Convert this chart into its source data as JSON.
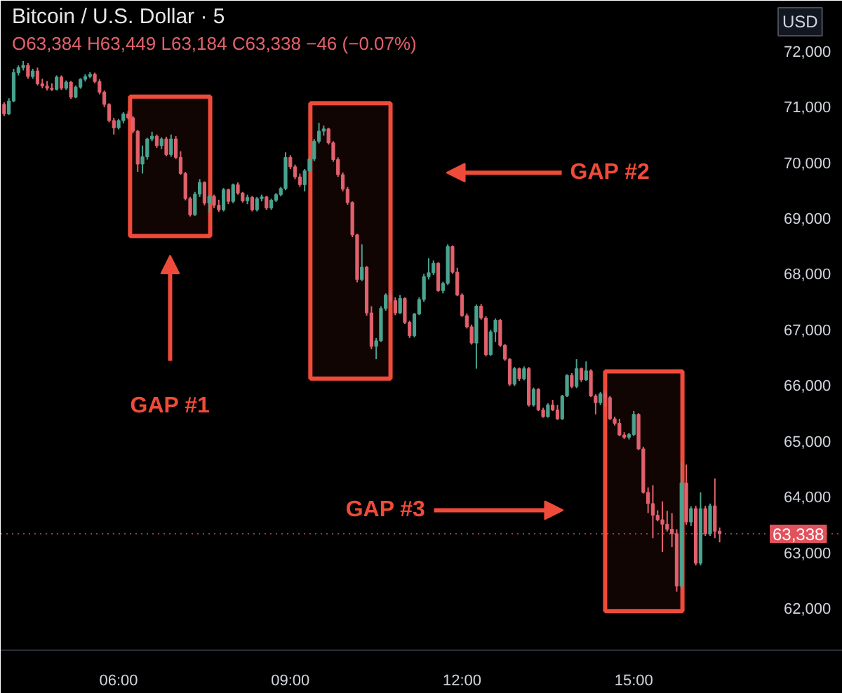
{
  "chart_data": {
    "type": "candlestick",
    "title": "Bitcoin / U.S. Dollar · 5",
    "subtitle": "O63,384 H63,449 L63,184 C63,338 −46 (−0.07%)",
    "ylabel": "USD",
    "x": [
      4,
      4.0833,
      4.1667,
      4.25,
      4.3333,
      4.4167,
      4.5,
      4.5833,
      4.6667,
      4.75,
      4.8333,
      4.9167,
      5,
      5.0833,
      5.1667,
      5.25,
      5.3333,
      5.4167,
      5.5,
      5.5833,
      5.6667,
      5.75,
      5.8333,
      5.9167,
      6,
      6.0833,
      6.1667,
      6.25,
      6.3333,
      6.4167,
      6.5,
      6.5833,
      6.6667,
      6.75,
      6.8333,
      6.9167,
      7,
      7.0833,
      7.1667,
      7.25,
      7.3333,
      7.4167,
      7.5,
      7.5833,
      7.6667,
      7.75,
      7.8333,
      7.9167,
      8,
      8.0833,
      8.1667,
      8.25,
      8.3333,
      8.4167,
      8.5,
      8.5833,
      8.6667,
      8.75,
      8.8333,
      8.9167,
      9,
      9.0833,
      9.1667,
      9.25,
      9.3333,
      9.4167,
      9.5,
      9.5833,
      9.6667,
      9.75,
      9.8333,
      9.9167,
      10,
      10.0833,
      10.1667,
      10.25,
      10.3333,
      10.4167,
      10.5,
      10.5833,
      10.6667,
      10.75,
      10.8333,
      10.9167,
      11,
      11.0833,
      11.1667,
      11.25,
      11.3333,
      11.4167,
      11.5,
      11.5833,
      11.6667,
      11.75,
      11.8333,
      11.9167,
      12,
      12.0833,
      12.1667,
      12.25,
      12.3333,
      12.4167,
      12.5,
      12.5833,
      12.6667,
      12.75,
      12.8333,
      12.9167,
      13,
      13.0833,
      13.1667,
      13.25,
      13.3333,
      13.4167,
      13.5,
      13.5833,
      13.6667,
      13.75,
      13.8333,
      13.9167,
      14,
      14.0833,
      14.1667,
      14.25,
      14.3333,
      14.4167,
      14.5,
      14.5833,
      14.6667,
      14.75,
      14.8333,
      14.9167,
      15,
      15.0833,
      15.1667,
      15.25,
      15.3333,
      15.4167,
      15.5,
      15.5833,
      15.6667,
      15.75,
      15.8333,
      15.9167,
      16,
      16.0833,
      16.1667,
      16.25,
      16.3333,
      16.4167,
      16.5
    ],
    "ohlc": [
      [
        71040,
        71080,
        70830,
        70870
      ],
      [
        70870,
        71150,
        70850,
        71100
      ],
      [
        71100,
        71680,
        71080,
        71610
      ],
      [
        71610,
        71740,
        71560,
        71700
      ],
      [
        71700,
        71820,
        71650,
        71740
      ],
      [
        71740,
        71780,
        71500,
        71540
      ],
      [
        71540,
        71680,
        71500,
        71640
      ],
      [
        71640,
        71700,
        71380,
        71410
      ],
      [
        71410,
        71500,
        71330,
        71370
      ],
      [
        71370,
        71460,
        71290,
        71330
      ],
      [
        71330,
        71420,
        71280,
        71310
      ],
      [
        71310,
        71560,
        71290,
        71530
      ],
      [
        71530,
        71560,
        71300,
        71330
      ],
      [
        71330,
        71470,
        71300,
        71440
      ],
      [
        71440,
        71460,
        71140,
        71170
      ],
      [
        71170,
        71380,
        71150,
        71350
      ],
      [
        71350,
        71510,
        71320,
        71490
      ],
      [
        71490,
        71580,
        71450,
        71540
      ],
      [
        71540,
        71620,
        71510,
        71580
      ],
      [
        71580,
        71610,
        71420,
        71450
      ],
      [
        71450,
        71490,
        71220,
        71260
      ],
      [
        71260,
        71290,
        70990,
        71040
      ],
      [
        71040,
        71060,
        70720,
        70750
      ],
      [
        70750,
        70800,
        70500,
        70620
      ],
      [
        70620,
        70780,
        70590,
        70750
      ],
      [
        70750,
        70900,
        70700,
        70870
      ],
      [
        70870,
        70920,
        70770,
        70800
      ],
      [
        70800,
        70830,
        70520,
        70560
      ],
      [
        70560,
        70580,
        69830,
        69970
      ],
      [
        69970,
        70300,
        69800,
        70100
      ],
      [
        70100,
        70440,
        70050,
        70420
      ],
      [
        70420,
        70550,
        70380,
        70470
      ],
      [
        70470,
        70500,
        70260,
        70300
      ],
      [
        70300,
        70450,
        70240,
        70420
      ],
      [
        70420,
        70460,
        70110,
        70140
      ],
      [
        70140,
        70500,
        70100,
        70420
      ],
      [
        70420,
        70470,
        70060,
        70090
      ],
      [
        70090,
        70200,
        69780,
        69800
      ],
      [
        69800,
        69830,
        69320,
        69350
      ],
      [
        69350,
        69380,
        69030,
        69060
      ],
      [
        69060,
        69470,
        69040,
        69430
      ],
      [
        69430,
        69700,
        69380,
        69640
      ],
      [
        69640,
        69660,
        69230,
        69270
      ],
      [
        69270,
        69420,
        69100,
        69390
      ],
      [
        69390,
        69420,
        69180,
        69230
      ],
      [
        69230,
        69330,
        69110,
        69150
      ],
      [
        69150,
        69540,
        69120,
        69510
      ],
      [
        69510,
        69530,
        69250,
        69300
      ],
      [
        69300,
        69620,
        69270,
        69600
      ],
      [
        69600,
        69640,
        69420,
        69450
      ],
      [
        69450,
        69470,
        69280,
        69310
      ],
      [
        69310,
        69420,
        69250,
        69370
      ],
      [
        69370,
        69400,
        69120,
        69150
      ],
      [
        69150,
        69380,
        69120,
        69350
      ],
      [
        69350,
        69420,
        69300,
        69380
      ],
      [
        69380,
        69400,
        69150,
        69180
      ],
      [
        69180,
        69350,
        69150,
        69320
      ],
      [
        69320,
        69450,
        69290,
        69420
      ],
      [
        69420,
        69560,
        69390,
        69530
      ],
      [
        69530,
        70180,
        69500,
        70090
      ],
      [
        70090,
        70130,
        69880,
        69920
      ],
      [
        69920,
        69960,
        69700,
        69740
      ],
      [
        69740,
        69800,
        69560,
        69600
      ],
      [
        69600,
        69880,
        69480,
        69850
      ],
      [
        69850,
        70100,
        69820,
        70060
      ],
      [
        70060,
        70420,
        70020,
        70380
      ],
      [
        70380,
        70710,
        70340,
        70560
      ],
      [
        70560,
        70660,
        70480,
        70600
      ],
      [
        70600,
        70620,
        70320,
        70350
      ],
      [
        70350,
        70380,
        70010,
        70050
      ],
      [
        70050,
        70090,
        69740,
        69780
      ],
      [
        69780,
        69820,
        69480,
        69520
      ],
      [
        69520,
        69560,
        69240,
        69280
      ],
      [
        69280,
        69300,
        68660,
        68700
      ],
      [
        68700,
        68720,
        67850,
        67900
      ],
      [
        67900,
        68530,
        67870,
        68120
      ],
      [
        68120,
        68140,
        67250,
        67300
      ],
      [
        67300,
        67420,
        66650,
        66700
      ],
      [
        66700,
        66850,
        66470,
        66800
      ],
      [
        66800,
        67420,
        66780,
        67380
      ],
      [
        67380,
        67650,
        67340,
        67620
      ],
      [
        67620,
        67700,
        67480,
        67520
      ],
      [
        67520,
        67580,
        67260,
        67300
      ],
      [
        67300,
        67620,
        67280,
        67560
      ],
      [
        67560,
        67580,
        67100,
        67130
      ],
      [
        67130,
        67160,
        66850,
        66890
      ],
      [
        66890,
        67300,
        66860,
        67280
      ],
      [
        67280,
        67580,
        67260,
        67540
      ],
      [
        67540,
        68000,
        67500,
        67950
      ],
      [
        67950,
        68280,
        67900,
        68020
      ],
      [
        68020,
        68240,
        67980,
        68190
      ],
      [
        68190,
        68210,
        67680,
        67700
      ],
      [
        67700,
        67860,
        67650,
        67830
      ],
      [
        67830,
        68530,
        67800,
        68490
      ],
      [
        68490,
        68510,
        68000,
        68030
      ],
      [
        68030,
        68110,
        67600,
        67620
      ],
      [
        67620,
        67650,
        67230,
        67250
      ],
      [
        67250,
        67290,
        67020,
        67050
      ],
      [
        67050,
        67090,
        66730,
        66760
      ],
      [
        66760,
        67450,
        66300,
        67420
      ],
      [
        67420,
        67460,
        67180,
        67210
      ],
      [
        67210,
        67240,
        66520,
        66550
      ],
      [
        66550,
        67000,
        66530,
        66960
      ],
      [
        66960,
        67200,
        66780,
        67170
      ],
      [
        67170,
        67190,
        66690,
        66720
      ],
      [
        66720,
        66740,
        66440,
        66470
      ],
      [
        66470,
        66490,
        65990,
        66020
      ],
      [
        66020,
        66330,
        65990,
        66300
      ],
      [
        66300,
        66320,
        66080,
        66120
      ],
      [
        66120,
        66340,
        66090,
        66300
      ],
      [
        66300,
        66330,
        65620,
        65650
      ],
      [
        65650,
        65960,
        65620,
        65930
      ],
      [
        65930,
        65950,
        65540,
        65560
      ],
      [
        65560,
        65600,
        65420,
        65440
      ],
      [
        65440,
        65680,
        65420,
        65650
      ],
      [
        65650,
        65740,
        65540,
        65560
      ],
      [
        65560,
        65650,
        65380,
        65400
      ],
      [
        65400,
        65830,
        65380,
        65810
      ],
      [
        65810,
        66200,
        65790,
        66180
      ],
      [
        66180,
        66220,
        65950,
        65980
      ],
      [
        65980,
        66470,
        65950,
        66300
      ],
      [
        66300,
        66320,
        66060,
        66100
      ],
      [
        66100,
        66430,
        66080,
        66260
      ],
      [
        66260,
        66290,
        65790,
        65810
      ],
      [
        65810,
        65840,
        65480,
        65690
      ],
      [
        65690,
        65880,
        65650,
        65850
      ],
      [
        65850,
        65900,
        65620,
        65780
      ],
      [
        65780,
        65810,
        65380,
        65400
      ],
      [
        65400,
        65440,
        65280,
        65320
      ],
      [
        65320,
        65400,
        65090,
        65110
      ],
      [
        65110,
        65160,
        65040,
        65070
      ],
      [
        65070,
        65150,
        65030,
        65120
      ],
      [
        65120,
        65540,
        65090,
        65480
      ],
      [
        65480,
        65500,
        64840,
        64860
      ],
      [
        64860,
        64900,
        64060,
        64080
      ],
      [
        64080,
        64170,
        63710,
        63880
      ],
      [
        63880,
        64210,
        63260,
        63670
      ],
      [
        63670,
        63760,
        63560,
        63590
      ],
      [
        63590,
        63920,
        63010,
        63510
      ],
      [
        63510,
        63750,
        63380,
        63420
      ],
      [
        63420,
        63710,
        63100,
        63340
      ],
      [
        63340,
        63420,
        62300,
        62400
      ],
      [
        62400,
        64620,
        62350,
        64250
      ],
      [
        64250,
        64580,
        63500,
        63550
      ],
      [
        63550,
        63830,
        63480,
        63790
      ],
      [
        63790,
        63840,
        62770,
        62810
      ],
      [
        62810,
        64080,
        62770,
        63790
      ],
      [
        63790,
        63840,
        63300,
        63340
      ],
      [
        63340,
        63880,
        63300,
        63840
      ],
      [
        63840,
        64330,
        63260,
        63384
      ],
      [
        63384,
        63449,
        63184,
        63338
      ]
    ],
    "colors": [
      "#e1616c",
      "#4aa38f",
      "#4aa38f",
      "#4aa38f",
      "#4aa38f",
      "#e1616c",
      "#4aa38f",
      "#e1616c",
      "#e1616c",
      "#e1616c",
      "#e1616c",
      "#4aa38f",
      "#e1616c",
      "#4aa38f",
      "#e1616c",
      "#4aa38f",
      "#4aa38f",
      "#4aa38f",
      "#4aa38f",
      "#e1616c",
      "#e1616c",
      "#e1616c",
      "#e1616c",
      "#e1616c",
      "#4aa38f",
      "#4aa38f",
      "#e1616c",
      "#e1616c",
      "#e1616c",
      "#4aa38f",
      "#4aa38f",
      "#4aa38f",
      "#e1616c",
      "#4aa38f",
      "#e1616c",
      "#4aa38f",
      "#e1616c",
      "#e1616c",
      "#e1616c",
      "#e1616c",
      "#4aa38f",
      "#4aa38f",
      "#e1616c",
      "#4aa38f",
      "#e1616c",
      "#e1616c",
      "#4aa38f",
      "#e1616c",
      "#4aa38f",
      "#e1616c",
      "#e1616c",
      "#4aa38f",
      "#e1616c",
      "#4aa38f",
      "#4aa38f",
      "#e1616c",
      "#4aa38f",
      "#4aa38f",
      "#4aa38f",
      "#4aa38f",
      "#e1616c",
      "#e1616c",
      "#e1616c",
      "#4aa38f",
      "#4aa38f",
      "#4aa38f",
      "#4aa38f",
      "#4aa38f",
      "#e1616c",
      "#e1616c",
      "#e1616c",
      "#e1616c",
      "#e1616c",
      "#e1616c",
      "#e1616c",
      "#4aa38f",
      "#e1616c",
      "#e1616c",
      "#4aa38f",
      "#4aa38f",
      "#4aa38f",
      "#e1616c",
      "#e1616c",
      "#4aa38f",
      "#e1616c",
      "#e1616c",
      "#4aa38f",
      "#4aa38f",
      "#4aa38f",
      "#4aa38f",
      "#4aa38f",
      "#e1616c",
      "#4aa38f",
      "#4aa38f",
      "#e1616c",
      "#e1616c",
      "#e1616c",
      "#e1616c",
      "#e1616c",
      "#4aa38f",
      "#e1616c",
      "#e1616c",
      "#4aa38f",
      "#4aa38f",
      "#e1616c",
      "#e1616c",
      "#e1616c",
      "#4aa38f",
      "#e1616c",
      "#4aa38f",
      "#e1616c",
      "#4aa38f",
      "#e1616c",
      "#e1616c",
      "#4aa38f",
      "#e1616c",
      "#e1616c",
      "#4aa38f",
      "#4aa38f",
      "#e1616c",
      "#4aa38f",
      "#e1616c",
      "#4aa38f",
      "#e1616c",
      "#e1616c",
      "#4aa38f",
      "#e1616c",
      "#e1616c",
      "#e1616c",
      "#e1616c",
      "#e1616c",
      "#4aa38f",
      "#4aa38f",
      "#e1616c",
      "#e1616c",
      "#e1616c",
      "#e1616c",
      "#e1616c",
      "#e1616c",
      "#e1616c",
      "#e1616c",
      "#e1616c",
      "#4aa38f",
      "#e1616c",
      "#4aa38f",
      "#e1616c",
      "#4aa38f",
      "#e1616c",
      "#4aa38f",
      "#e1616c",
      "#e1616c"
    ],
    "xlim": [
      3.94,
      18.65
    ],
    "ylim": [
      61250,
      72900
    ],
    "xticks": [
      {
        "value": 6,
        "label": "06:00"
      },
      {
        "value": 9,
        "label": "09:00"
      },
      {
        "value": 12,
        "label": "12:00"
      },
      {
        "value": 15,
        "label": "15:00"
      }
    ],
    "yticks": [
      {
        "value": 62000,
        "label": "62,000"
      },
      {
        "value": 63000,
        "label": "63,000"
      },
      {
        "value": 64000,
        "label": "64,000"
      },
      {
        "value": 65000,
        "label": "65,000"
      },
      {
        "value": 66000,
        "label": "66,000"
      },
      {
        "value": 67000,
        "label": "67,000"
      },
      {
        "value": 68000,
        "label": "68,000"
      },
      {
        "value": 69000,
        "label": "69,000"
      },
      {
        "value": 70000,
        "label": "70,000"
      },
      {
        "value": 71000,
        "label": "71,000"
      },
      {
        "value": 72000,
        "label": "72,000"
      }
    ],
    "ref_lines": [
      {
        "axis": "y",
        "value": 63338,
        "label": "63,338",
        "color": "#e2525c",
        "line_style": "dotted"
      }
    ],
    "bands": [
      {
        "axis": "x",
        "from": 6.2,
        "to": 7.6,
        "label": "GAP #1",
        "color": "#f04b3a"
      },
      {
        "axis": "x",
        "from": 9.35,
        "to": 10.75,
        "label": "GAP #2",
        "color": "#f04b3a"
      },
      {
        "axis": "x",
        "from": 14.5,
        "to": 15.85,
        "label": "GAP #3",
        "color": "#f04b3a"
      }
    ]
  }
}
